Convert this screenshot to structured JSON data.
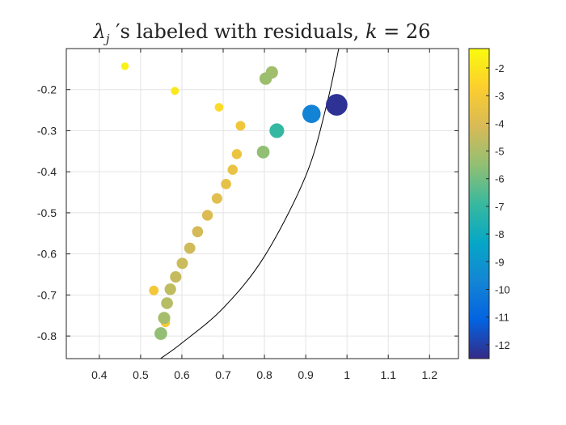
{
  "chart_data": {
    "type": "scatter",
    "title_main": "λ",
    "title_sub": "j",
    "title_rest": " ′s labeled with residuals, ",
    "title_k_label": "k",
    "title_k_eq": " = 26",
    "xlim": [
      0.32,
      1.27
    ],
    "ylim": [
      -0.855,
      -0.1
    ],
    "xticks": [
      0.4,
      0.5,
      0.6,
      0.7,
      0.8,
      0.9,
      1.0,
      1.1,
      1.2
    ],
    "xtick_labels": [
      "0.4",
      "0.5",
      "0.6",
      "0.7",
      "0.8",
      "0.9",
      "1",
      "1.1",
      "1.2"
    ],
    "yticks": [
      -0.8,
      -0.7,
      -0.6,
      -0.5,
      -0.4,
      -0.3,
      -0.2
    ],
    "ytick_labels": [
      "-0.8",
      "-0.7",
      "-0.6",
      "-0.5",
      "-0.4",
      "-0.3",
      "-0.2"
    ],
    "grid": true,
    "colorbar": {
      "range": [
        -12.5,
        -1.3
      ],
      "ticks": [
        -2,
        -3,
        -4,
        -5,
        -6,
        -7,
        -8,
        -9,
        -10,
        -11,
        -12
      ],
      "tick_labels": [
        "-2",
        "-3",
        "-4",
        "-5",
        "-6",
        "-7",
        "-8",
        "-9",
        "-10",
        "-11",
        "-12"
      ],
      "colormap": "parula",
      "colors": [
        "#352a87",
        "#0363e1",
        "#1485d4",
        "#06a7c6",
        "#38b99e",
        "#92bf73",
        "#d9ba56",
        "#fcce2e",
        "#f9fb0e"
      ]
    },
    "curve": {
      "description_free": true,
      "points": [
        [
          0.548,
          -0.855
        ],
        [
          0.6,
          -0.817
        ],
        [
          0.7,
          -0.732
        ],
        [
          0.8,
          -0.606
        ],
        [
          0.9,
          -0.41
        ],
        [
          0.95,
          -0.24
        ],
        [
          0.98,
          -0.1
        ]
      ]
    },
    "points": [
      {
        "x": 0.462,
        "y": -0.143,
        "residual": -1.6
      },
      {
        "x": 0.583,
        "y": -0.203,
        "residual": -1.9
      },
      {
        "x": 0.69,
        "y": -0.243,
        "residual": -2.3
      },
      {
        "x": 0.742,
        "y": -0.288,
        "residual": -3.2
      },
      {
        "x": 0.733,
        "y": -0.357,
        "residual": -3.4
      },
      {
        "x": 0.723,
        "y": -0.395,
        "residual": -3.5
      },
      {
        "x": 0.707,
        "y": -0.43,
        "residual": -3.6
      },
      {
        "x": 0.685,
        "y": -0.465,
        "residual": -3.8
      },
      {
        "x": 0.662,
        "y": -0.506,
        "residual": -4.0
      },
      {
        "x": 0.638,
        "y": -0.546,
        "residual": -4.2
      },
      {
        "x": 0.619,
        "y": -0.586,
        "residual": -4.3
      },
      {
        "x": 0.601,
        "y": -0.623,
        "residual": -4.4
      },
      {
        "x": 0.585,
        "y": -0.656,
        "residual": -4.5
      },
      {
        "x": 0.572,
        "y": -0.686,
        "residual": -4.6
      },
      {
        "x": 0.532,
        "y": -0.689,
        "residual": -3.1
      },
      {
        "x": 0.564,
        "y": -0.72,
        "residual": -4.8
      },
      {
        "x": 0.557,
        "y": -0.756,
        "residual": -5.1
      },
      {
        "x": 0.56,
        "y": -0.767,
        "residual": -2.9
      },
      {
        "x": 0.549,
        "y": -0.794,
        "residual": -5.5
      },
      {
        "x": 0.549,
        "y": -0.793,
        "residual": -3.2
      },
      {
        "x": 0.818,
        "y": -0.158,
        "residual": -5.2
      },
      {
        "x": 0.803,
        "y": -0.173,
        "residual": -5.3
      },
      {
        "x": 0.797,
        "y": -0.352,
        "residual": -5.5
      },
      {
        "x": 0.83,
        "y": -0.3,
        "residual": -7.0
      },
      {
        "x": 0.914,
        "y": -0.259,
        "residual": -9.8
      },
      {
        "x": 0.975,
        "y": -0.237,
        "residual": -12.3
      }
    ]
  }
}
